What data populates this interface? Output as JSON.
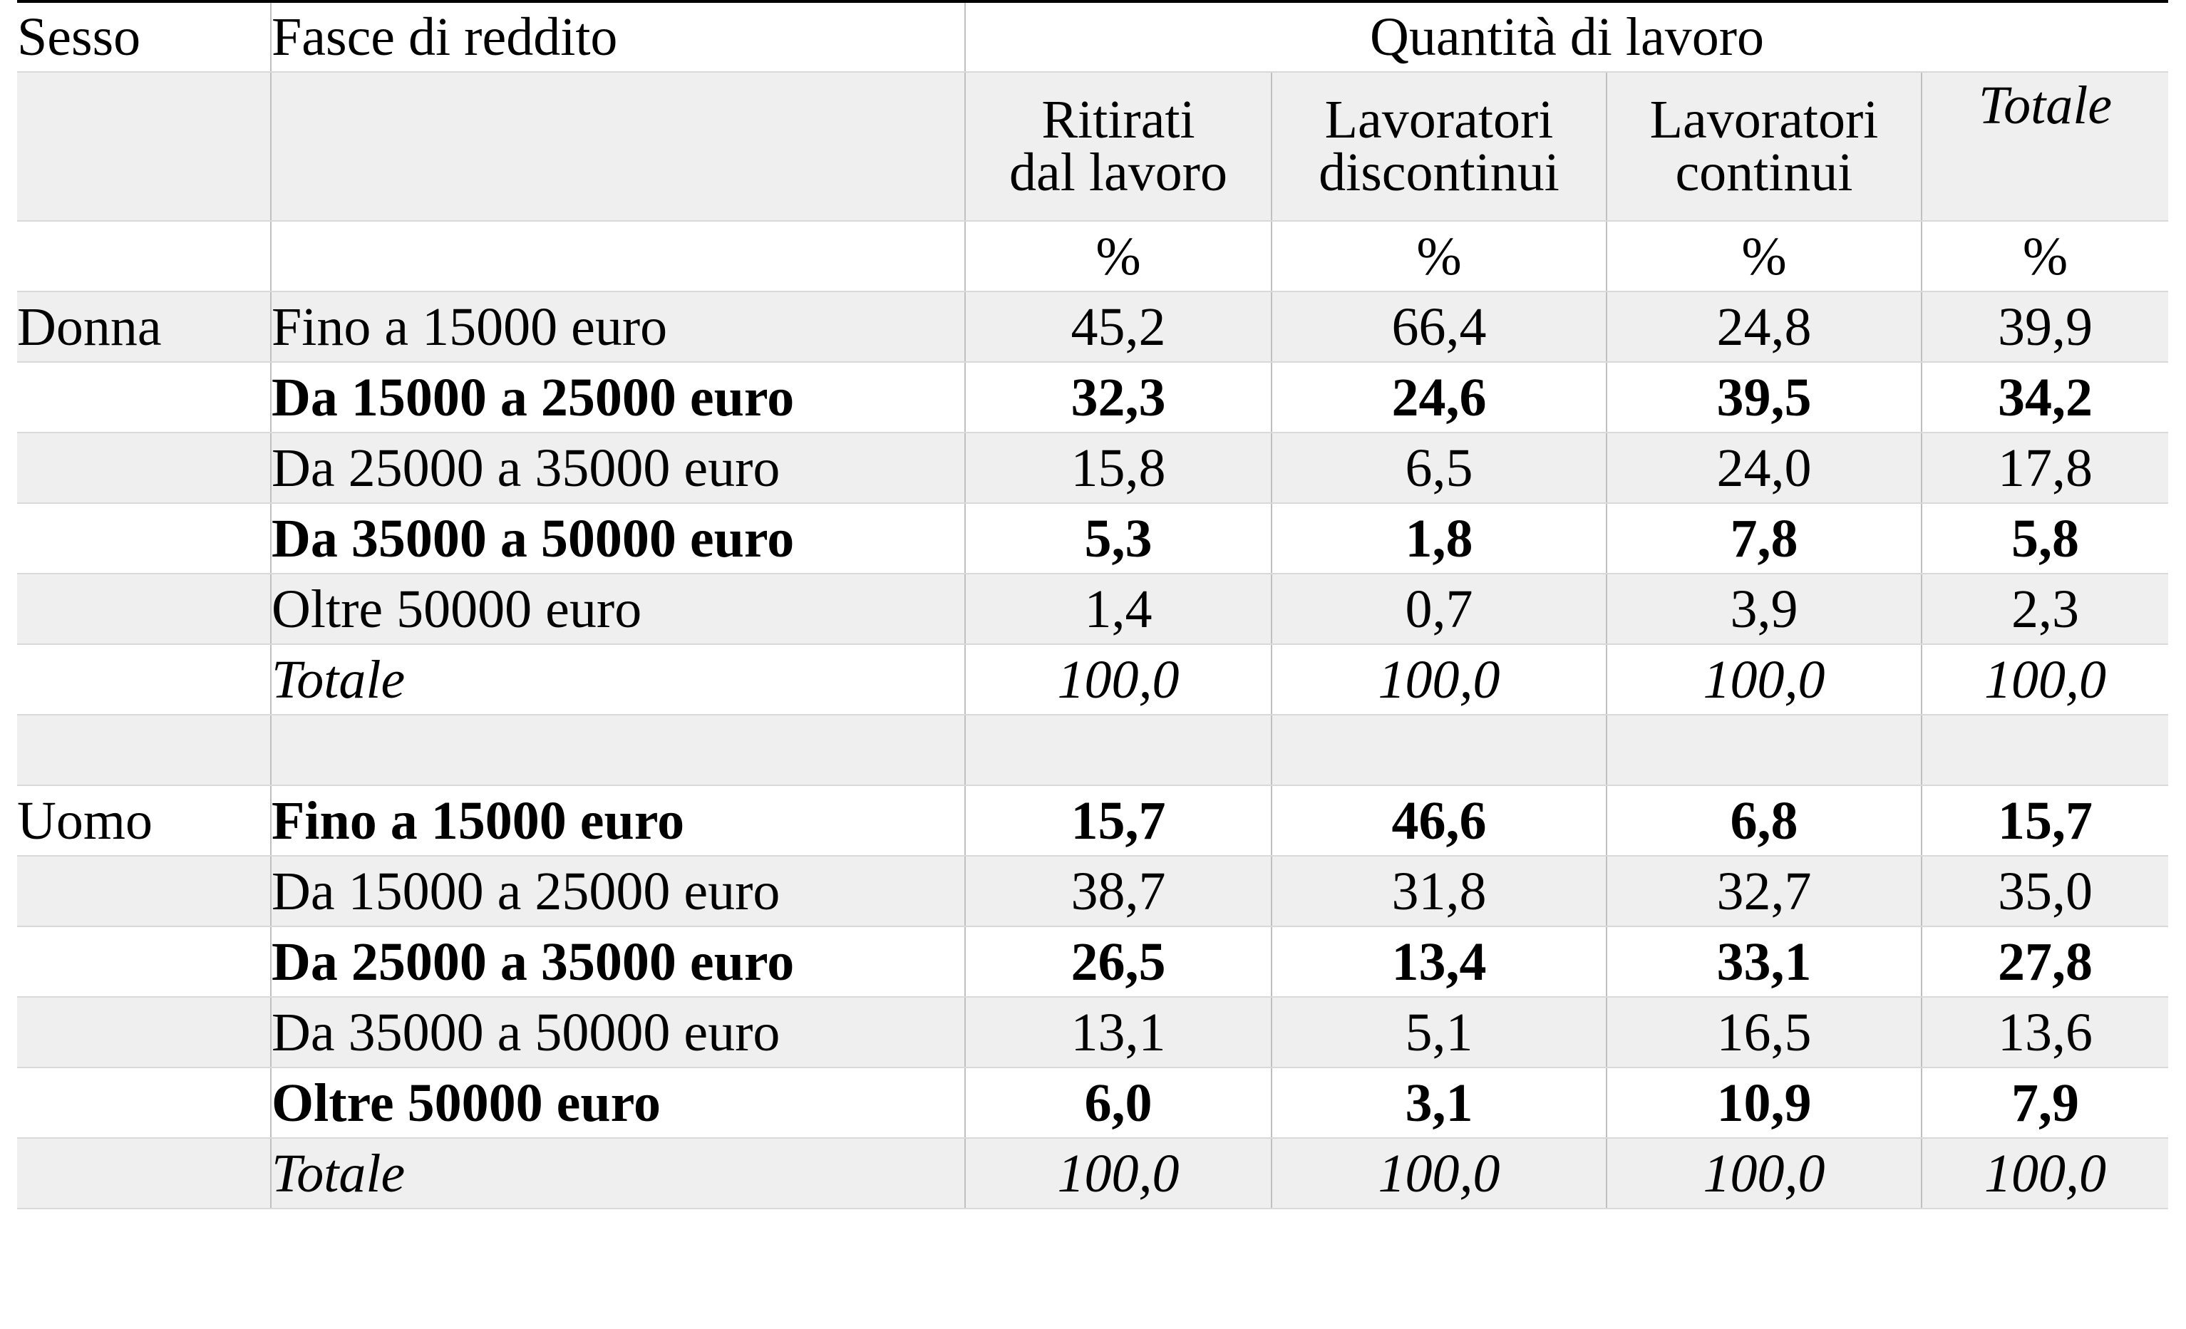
{
  "header": {
    "sex_label": "Sesso",
    "band_label": "Fasce di reddito",
    "group_label": "Quantità di lavoro"
  },
  "columns": [
    {
      "line1": "Ritirati",
      "line2": "dal lavoro",
      "unit": "%"
    },
    {
      "line1": "Lavoratori",
      "line2": "discontinui",
      "unit": "%"
    },
    {
      "line1": "Lavoratori",
      "line2": "continui",
      "unit": "%"
    },
    {
      "line1": "Totale",
      "line2": "",
      "unit": "%"
    }
  ],
  "groups": [
    {
      "sex": "Donna",
      "rows": [
        {
          "band": "Fino a 15000 euro",
          "values": [
            "45,2",
            "66,4",
            "24,8",
            "39,9"
          ]
        },
        {
          "band": "Da 15000 a 25000 euro",
          "values": [
            "32,3",
            "24,6",
            "39,5",
            "34,2"
          ]
        },
        {
          "band": "Da 25000 a 35000 euro",
          "values": [
            "15,8",
            "6,5",
            "24,0",
            "17,8"
          ]
        },
        {
          "band": "Da 35000 a 50000 euro",
          "values": [
            "5,3",
            "1,8",
            "7,8",
            "5,8"
          ]
        },
        {
          "band": "Oltre 50000 euro",
          "values": [
            "1,4",
            "0,7",
            "3,9",
            "2,3"
          ]
        },
        {
          "band": "Totale",
          "values": [
            "100,0",
            "100,0",
            "100,0",
            "100,0"
          ]
        }
      ]
    },
    {
      "sex": "Uomo",
      "rows": [
        {
          "band": "Fino a 15000 euro",
          "values": [
            "15,7",
            "46,6",
            "6,8",
            "15,7"
          ]
        },
        {
          "band": "Da 15000 a 25000 euro",
          "values": [
            "38,7",
            "31,8",
            "32,7",
            "35,0"
          ]
        },
        {
          "band": "Da 25000 a 35000 euro",
          "values": [
            "26,5",
            "13,4",
            "33,1",
            "27,8"
          ]
        },
        {
          "band": "Da 35000 a 50000 euro",
          "values": [
            "13,1",
            "5,1",
            "16,5",
            "13,6"
          ]
        },
        {
          "band": "Oltre 50000 euro",
          "values": [
            "6,0",
            "3,1",
            "10,9",
            "7,9"
          ]
        },
        {
          "band": "Totale",
          "values": [
            "100,0",
            "100,0",
            "100,0",
            "100,0"
          ]
        }
      ]
    }
  ]
}
